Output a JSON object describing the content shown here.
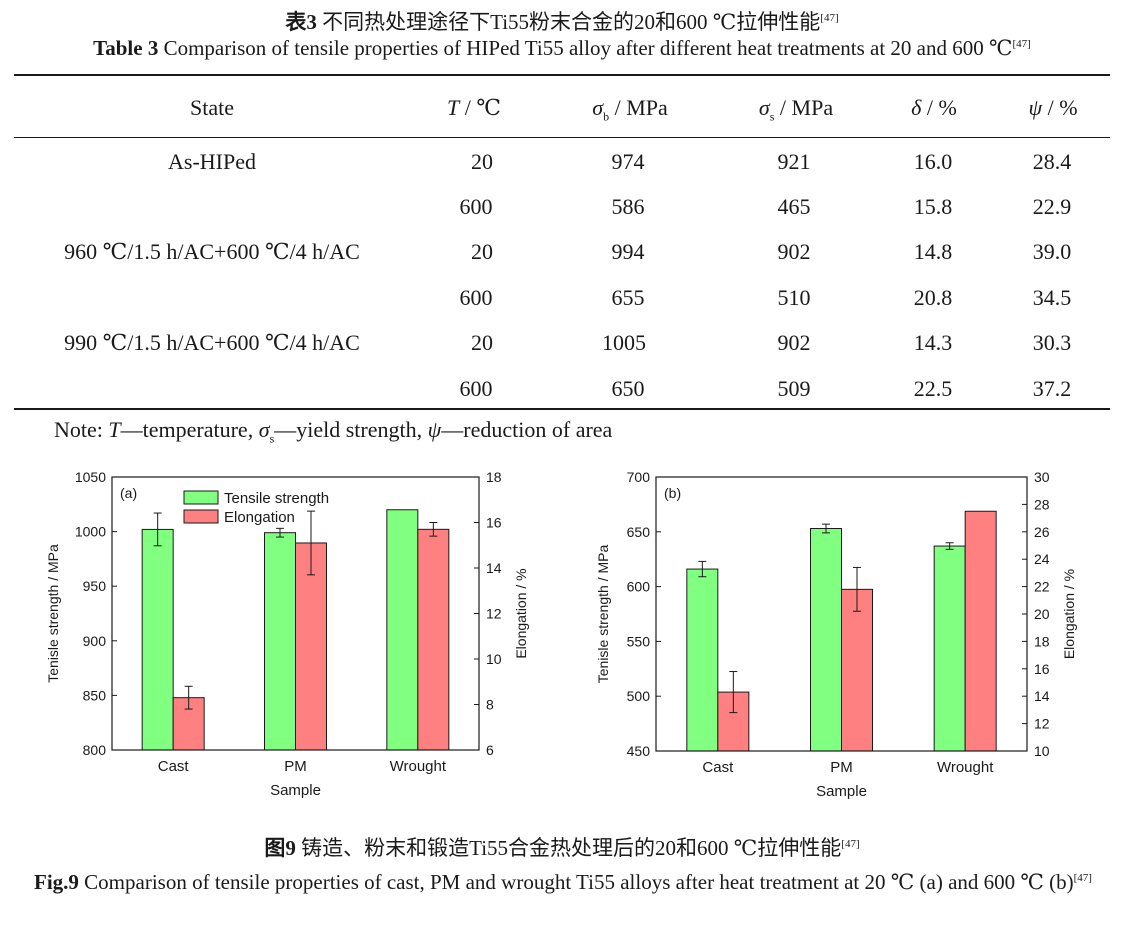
{
  "table": {
    "caption_cn_label": "表3",
    "caption_cn": "不同热处理途径下Ti55粉末合金的20和600 ℃拉伸性能",
    "caption_cn_ref": "[47]",
    "caption_en_label": "Table 3",
    "caption_en": "Comparison of tensile properties of HIPed Ti55 alloy after different heat treatments at 20 and 600 ℃",
    "caption_en_ref": "[47]",
    "headers": {
      "state": "State",
      "temp_sym": "T",
      "temp_unit": " / ℃",
      "sb_sym": "σ",
      "sb_sub": "b",
      "sb_unit": " / MPa",
      "ss_sym": "σ",
      "ss_sub": "s",
      "ss_unit": " / MPa",
      "delta_sym": "δ",
      "delta_unit": " / %",
      "psi_sym": "ψ",
      "psi_unit": " / %"
    },
    "rows": [
      {
        "state": "As-HIPed",
        "t": "20",
        "sb": "974",
        "ss": "921",
        "delta": "16.0",
        "psi": "28.4"
      },
      {
        "state": "",
        "t": "600",
        "sb": "586",
        "ss": "465",
        "delta": "15.8",
        "psi": "22.9"
      },
      {
        "state": "960 ℃/1.5 h/AC+600 ℃/4 h/AC",
        "t": "20",
        "sb": "994",
        "ss": "902",
        "delta": "14.8",
        "psi": "39.0"
      },
      {
        "state": "",
        "t": "600",
        "sb": "655",
        "ss": "510",
        "delta": "20.8",
        "psi": "34.5"
      },
      {
        "state": "990 ℃/1.5 h/AC+600 ℃/4 h/AC",
        "t": "20",
        "sb": "1005",
        "ss": "902",
        "delta": "14.3",
        "psi": "30.3"
      },
      {
        "state": "",
        "t": "600",
        "sb": "650",
        "ss": "509",
        "delta": "22.5",
        "psi": "37.2"
      }
    ],
    "note_prefix": "Note: ",
    "note_t": "T",
    "note_t_desc": "—temperature, ",
    "note_sigma": "σ",
    "note_sigma_sub": "s",
    "note_sigma_desc": "—yield strength, ",
    "note_psi": "ψ",
    "note_psi_desc": "—reduction of area"
  },
  "figure": {
    "caption_cn_label": "图9",
    "caption_cn": "铸造、粉末和锻造Ti55合金热处理后的20和600 ℃拉伸性能",
    "caption_cn_ref": "[47]",
    "caption_en_label": "Fig.9",
    "caption_en": "Comparison of tensile properties of cast, PM and wrought Ti55 alloys after heat treatment at 20 ℃ (a) and 600 ℃ (b)",
    "caption_en_ref": "[47]"
  },
  "colors": {
    "tensile": "#80ff80",
    "elongation": "#ff8080",
    "axis": "#1a1a1a"
  },
  "chart_data": [
    {
      "type": "bar",
      "panel_label": "(a)",
      "categories": [
        "Cast",
        "PM",
        "Wrought"
      ],
      "xlabel": "Sample",
      "ylabel": "Tenisle strength / MPa",
      "y2label": "Elongation / %",
      "ylim": [
        800,
        1050
      ],
      "y2lim": [
        6,
        18
      ],
      "yticks": [
        800,
        850,
        900,
        950,
        1000,
        1050
      ],
      "y2ticks": [
        6,
        8,
        10,
        12,
        14,
        16,
        18
      ],
      "legend": [
        "Tensile strength",
        "Elongation"
      ],
      "series": [
        {
          "name": "Tensile strength",
          "axis": "left",
          "values": [
            1002,
            999,
            1020
          ],
          "errors": [
            15,
            4,
            0
          ]
        },
        {
          "name": "Elongation",
          "axis": "right",
          "values": [
            8.3,
            15.1,
            15.7
          ],
          "errors": [
            0.5,
            1.4,
            0.3
          ]
        }
      ]
    },
    {
      "type": "bar",
      "panel_label": "(b)",
      "categories": [
        "Cast",
        "PM",
        "Wrought"
      ],
      "xlabel": "Sample",
      "ylabel": "Tenisle strength / MPa",
      "y2label": "Elongation / %",
      "ylim": [
        450,
        700
      ],
      "y2lim": [
        10,
        30
      ],
      "yticks": [
        450,
        500,
        550,
        600,
        650,
        700
      ],
      "y2ticks": [
        10,
        12,
        14,
        16,
        18,
        20,
        22,
        24,
        26,
        28,
        30
      ],
      "series": [
        {
          "name": "Tensile strength",
          "axis": "left",
          "values": [
            616,
            653,
            637
          ],
          "errors": [
            7,
            4,
            3
          ]
        },
        {
          "name": "Elongation",
          "axis": "right",
          "values": [
            14.3,
            21.8,
            27.5
          ],
          "errors": [
            1.5,
            1.6,
            0
          ]
        }
      ]
    }
  ]
}
